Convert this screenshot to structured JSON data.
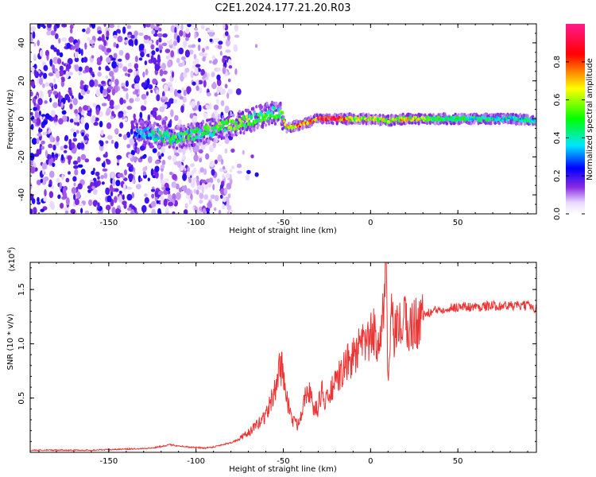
{
  "figure": {
    "title": "C2E1.2024.177.21.20.R03"
  },
  "chart_data": [
    {
      "type": "heatmap",
      "xlabel": "Height of straight line (km)",
      "ylabel": "Frequency (Hz)",
      "xlim": [
        -195,
        95
      ],
      "ylim": [
        -50,
        50
      ],
      "xticks": [
        -150,
        -100,
        -50,
        0,
        50
      ],
      "xtick_labels": [
        "-150",
        "-100",
        "-50",
        "0",
        "50"
      ],
      "yticks": [
        -40,
        -20,
        0,
        20,
        40
      ],
      "ytick_labels": [
        "-40",
        "-20",
        "0",
        "20",
        "40"
      ],
      "colorbar": {
        "label": "Normalized spectral amplitude",
        "range": [
          0,
          1
        ],
        "ticks": [
          0.0,
          0.2,
          0.4,
          0.6,
          0.8
        ],
        "tick_labels": [
          "0.0",
          "0.2",
          "0.4",
          "0.6",
          "0.8"
        ],
        "colormap": [
          "#ffffff",
          "#e8d8ff",
          "#8a2be2",
          "#0000ff",
          "#00e5ff",
          "#00ff00",
          "#ffff00",
          "#ff0000",
          "#ff1a8c"
        ]
      },
      "features": {
        "noise_region_x": [
          -195,
          -85
        ],
        "signal_ridge": [
          {
            "x": -135,
            "f": -6,
            "a": 0.3
          },
          {
            "x": -120,
            "f": -9,
            "a": 0.45
          },
          {
            "x": -110,
            "f": -10,
            "a": 0.5
          },
          {
            "x": -100,
            "f": -8,
            "a": 0.45
          },
          {
            "x": -90,
            "f": -6,
            "a": 0.5
          },
          {
            "x": -80,
            "f": -3,
            "a": 0.55
          },
          {
            "x": -70,
            "f": -1,
            "a": 0.55
          },
          {
            "x": -60,
            "f": 2,
            "a": 0.5
          },
          {
            "x": -52,
            "f": 4,
            "a": 0.5
          },
          {
            "x": -48,
            "f": -5,
            "a": 0.7
          },
          {
            "x": -40,
            "f": -3,
            "a": 0.8
          },
          {
            "x": -30,
            "f": 0,
            "a": 0.85
          },
          {
            "x": -20,
            "f": 0,
            "a": 0.95
          },
          {
            "x": -10,
            "f": 0,
            "a": 0.6
          },
          {
            "x": 0,
            "f": 0,
            "a": 0.65
          },
          {
            "x": 10,
            "f": -1,
            "a": 0.65
          },
          {
            "x": 20,
            "f": 0,
            "a": 0.7
          },
          {
            "x": 40,
            "f": 0,
            "a": 0.5
          },
          {
            "x": 60,
            "f": 0,
            "a": 0.45
          },
          {
            "x": 80,
            "f": 0,
            "a": 0.42
          },
          {
            "x": 95,
            "f": -1,
            "a": 0.4
          }
        ]
      }
    },
    {
      "type": "line",
      "xlabel": "Height of straight line (km)",
      "ylabel": "SNR (10 * v/v)",
      "y_multiplier": "(x10",
      "y_multiplier_exp": "4",
      "y_multiplier_close": ")",
      "xlim": [
        -195,
        95
      ],
      "ylim": [
        0,
        1.75
      ],
      "xticks": [
        -150,
        -100,
        -50,
        0,
        50
      ],
      "xtick_labels": [
        "-150",
        "-100",
        "-50",
        "0",
        "50"
      ],
      "yticks": [
        0.5,
        1.0,
        1.5
      ],
      "ytick_labels": [
        "0.5",
        "1.0",
        "1.5"
      ],
      "series": [
        {
          "color": "#ee3333",
          "x": [
            -195,
            -180,
            -160,
            -140,
            -125,
            -115,
            -105,
            -95,
            -90,
            -85,
            -80,
            -75,
            -70,
            -65,
            -60,
            -55,
            -52,
            -50,
            -48,
            -45,
            -42,
            -40,
            -38,
            -36,
            -34,
            -32,
            -30,
            -28,
            -26,
            -24,
            -22,
            -20,
            -18,
            -16,
            -14,
            -12,
            -10,
            -8,
            -6,
            -4,
            -2,
            0,
            2,
            4,
            6,
            8,
            9,
            10,
            12,
            14,
            16,
            18,
            20,
            22,
            25,
            28,
            30,
            33,
            36,
            40,
            45,
            50,
            60,
            70,
            80,
            90,
            95
          ],
          "y": [
            0.02,
            0.02,
            0.02,
            0.03,
            0.04,
            0.07,
            0.05,
            0.04,
            0.05,
            0.07,
            0.09,
            0.12,
            0.18,
            0.25,
            0.35,
            0.55,
            0.8,
            0.75,
            0.5,
            0.3,
            0.25,
            0.35,
            0.5,
            0.62,
            0.48,
            0.38,
            0.42,
            0.58,
            0.45,
            0.5,
            0.6,
            0.62,
            0.7,
            0.75,
            0.8,
            0.85,
            0.88,
            0.92,
            0.95,
            1.0,
            1.02,
            1.05,
            1.1,
            1.05,
            1.15,
            1.4,
            1.72,
            0.6,
            1.2,
            1.05,
            1.15,
            1.18,
            1.2,
            1.15,
            1.18,
            1.22,
            1.26,
            1.28,
            1.3,
            1.32,
            1.33,
            1.34,
            1.34,
            1.35,
            1.35,
            1.35,
            1.33
          ]
        }
      ]
    }
  ]
}
